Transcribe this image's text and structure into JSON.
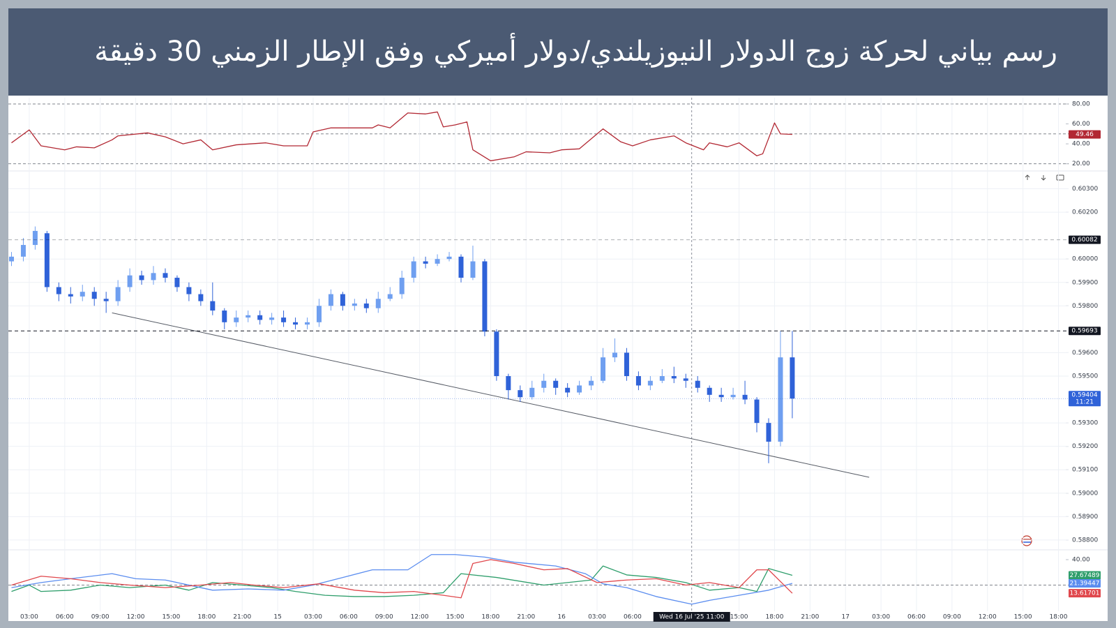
{
  "header": {
    "title": "رسم بياني لحركة زوج الدولار النيوزيلندي/دولار أميركي وفق الإطار الزمني 30 دقيقة"
  },
  "chart_data": [
    {
      "type": "line",
      "xlim": [
        -1,
        178
      ],
      "ylim": [
        12.8,
        84.2
      ],
      "yticks": [
        {
          "value": 80,
          "label": "80.00"
        },
        {
          "value": 60,
          "label": "60.00"
        },
        {
          "value": 40,
          "label": "40.00"
        },
        {
          "value": 20,
          "label": "20.00"
        }
      ],
      "levels": [
        80,
        50,
        20
      ],
      "grid": false,
      "last_value_labels": true,
      "series": [
        {
          "color": "#b22833",
          "x": [
            0,
            3,
            5,
            9,
            11,
            14,
            17,
            18,
            23,
            26,
            29,
            32,
            34,
            38,
            43,
            46,
            50,
            51,
            54,
            61,
            62,
            64,
            67,
            70,
            72,
            73,
            75,
            77,
            78,
            81,
            85,
            87,
            91,
            93,
            96,
            100,
            103,
            105,
            108,
            112,
            114,
            117,
            118,
            121,
            123,
            126,
            127,
            129,
            130,
            132
          ],
          "values": [
            41,
            54,
            38,
            34,
            37,
            36,
            44,
            48,
            51,
            47,
            40,
            44,
            34,
            39,
            41,
            38,
            38,
            52,
            56,
            56,
            59,
            56,
            71,
            70,
            72,
            57,
            59,
            62,
            34,
            23,
            27,
            32,
            31,
            34,
            35,
            55,
            42,
            38,
            44,
            48,
            41,
            34,
            41,
            37,
            41,
            28,
            30,
            61,
            50,
            49.46
          ]
        }
      ]
    },
    {
      "type": "candlestick",
      "xlim": [
        -1,
        178
      ],
      "ylim": [
        0.5877,
        0.60376
      ],
      "grid": true,
      "yticks": [
        {
          "value": 0.603,
          "label": "0.60300"
        },
        {
          "value": 0.602,
          "label": "0.60200"
        },
        {
          "value": 0.6,
          "label": "0.60000"
        },
        {
          "value": 0.599,
          "label": "0.59900"
        },
        {
          "value": 0.598,
          "label": "0.59800"
        },
        {
          "value": 0.596,
          "label": "0.59600"
        },
        {
          "value": 0.595,
          "label": "0.59500"
        },
        {
          "value": 0.593,
          "label": "0.59300"
        },
        {
          "value": 0.592,
          "label": "0.59200"
        },
        {
          "value": 0.591,
          "label": "0.59100"
        },
        {
          "value": 0.59,
          "label": "0.59000"
        },
        {
          "value": 0.589,
          "label": "0.58900"
        },
        {
          "value": 0.588,
          "label": "0.58800"
        }
      ],
      "up_color": "#6f9ff0",
      "down_color": "#2f62d8",
      "x": [
        0,
        2,
        4,
        6,
        8,
        10,
        12,
        14,
        16,
        18,
        20,
        22,
        24,
        26,
        28,
        30,
        32,
        34,
        36,
        38,
        40,
        42,
        44,
        46,
        48,
        50,
        52,
        54,
        56,
        58,
        60,
        62,
        64,
        66,
        68,
        70,
        72,
        74,
        76,
        78,
        80,
        82,
        84,
        86,
        88,
        90,
        92,
        94,
        96,
        98,
        100,
        102,
        104,
        106,
        108,
        110,
        112,
        114,
        116,
        118,
        120,
        122,
        124,
        126,
        128,
        130,
        132
      ],
      "open": [
        0.5999,
        0.6001,
        0.6006,
        0.6011,
        0.5988,
        0.5985,
        0.5984,
        0.5986,
        0.5983,
        0.5982,
        0.5988,
        0.5993,
        0.5991,
        0.5994,
        0.5992,
        0.5988,
        0.5985,
        0.5982,
        0.5978,
        0.5973,
        0.5975,
        0.5976,
        0.5974,
        0.5975,
        0.5973,
        0.5972,
        0.5973,
        0.598,
        0.5985,
        0.598,
        0.5981,
        0.5979,
        0.5983,
        0.5985,
        0.5992,
        0.5999,
        0.5998,
        0.6,
        0.6001,
        0.5992,
        0.5999,
        0.5969,
        0.595,
        0.5944,
        0.5941,
        0.5945,
        0.5948,
        0.5945,
        0.5943,
        0.5946,
        0.5948,
        0.5958,
        0.596,
        0.595,
        0.5946,
        0.5948,
        0.595,
        0.5949,
        0.5948,
        0.5945,
        0.5942,
        0.5941,
        0.5942,
        0.594,
        0.593,
        0.5922,
        0.5958
      ],
      "high": [
        0.6003,
        0.6009,
        0.60139,
        0.6012,
        0.599,
        0.5988,
        0.5989,
        0.5988,
        0.5986,
        0.5991,
        0.5996,
        0.5995,
        0.5997,
        0.5996,
        0.5993,
        0.599,
        0.5987,
        0.599,
        0.5979,
        0.5978,
        0.5978,
        0.5978,
        0.5977,
        0.5978,
        0.5975,
        0.5975,
        0.5983,
        0.5987,
        0.5986,
        0.5983,
        0.5983,
        0.5986,
        0.5988,
        0.5995,
        0.6001,
        0.6001,
        0.6002,
        0.6003,
        0.6002,
        0.60057,
        0.6,
        0.597,
        0.5951,
        0.5946,
        0.5948,
        0.5951,
        0.5949,
        0.5947,
        0.5948,
        0.595,
        0.5962,
        0.59661,
        0.5962,
        0.5952,
        0.595,
        0.5953,
        0.5954,
        0.5951,
        0.595,
        0.5946,
        0.5945,
        0.5945,
        0.5948,
        0.5941,
        0.5932,
        0.59693,
        0.59693
      ],
      "low": [
        0.5997,
        0.5999,
        0.6004,
        0.5986,
        0.5982,
        0.5981,
        0.5982,
        0.598,
        0.5977,
        0.598,
        0.5986,
        0.5989,
        0.5989,
        0.599,
        0.5986,
        0.5982,
        0.598,
        0.5976,
        0.597,
        0.5971,
        0.5973,
        0.5972,
        0.5972,
        0.5971,
        0.597,
        0.597,
        0.5971,
        0.5978,
        0.5978,
        0.5978,
        0.5977,
        0.5977,
        0.5982,
        0.5983,
        0.599,
        0.5996,
        0.5997,
        0.5999,
        0.599,
        0.5991,
        0.5967,
        0.5948,
        0.594,
        0.5939,
        0.594,
        0.5943,
        0.5942,
        0.5941,
        0.5942,
        0.5944,
        0.5947,
        0.5956,
        0.5948,
        0.5944,
        0.5944,
        0.5947,
        0.5947,
        0.5945,
        0.5943,
        0.5939,
        0.5939,
        0.594,
        0.5938,
        0.5926,
        0.59128,
        0.592,
        0.5932
      ],
      "close": [
        0.6001,
        0.6006,
        0.6012,
        0.5988,
        0.5985,
        0.5984,
        0.5986,
        0.5983,
        0.5982,
        0.5988,
        0.5993,
        0.5991,
        0.5994,
        0.5992,
        0.5988,
        0.5985,
        0.5982,
        0.5978,
        0.5973,
        0.5975,
        0.5976,
        0.5974,
        0.5975,
        0.5973,
        0.5972,
        0.5973,
        0.598,
        0.5985,
        0.598,
        0.5981,
        0.5979,
        0.5983,
        0.5985,
        0.5992,
        0.5999,
        0.5998,
        0.6,
        0.6001,
        0.5992,
        0.5999,
        0.5969,
        0.595,
        0.5944,
        0.5941,
        0.5945,
        0.5948,
        0.5945,
        0.5943,
        0.5946,
        0.5948,
        0.5958,
        0.596,
        0.595,
        0.5946,
        0.5948,
        0.595,
        0.5949,
        0.5948,
        0.5945,
        0.5942,
        0.5941,
        0.5942,
        0.594,
        0.593,
        0.5922,
        0.5958,
        0.59404
      ],
      "last_color": "#2f62d8",
      "countdown": "11:21",
      "price_lines": [
        {
          "value": 0.60082,
          "color": "#131722"
        },
        {
          "value": 0.59693,
          "color": "#131722"
        }
      ],
      "trendline": {
        "color": "#555a64",
        "x": [
          17,
          145
        ],
        "values": [
          0.5977,
          0.59068
        ]
      }
    },
    {
      "type": "line",
      "xlim": [
        -1,
        178
      ],
      "ylim": [
        0,
        45.5
      ],
      "yticks": [
        {
          "value": 40,
          "label": "40.00"
        }
      ],
      "levels": [
        20
      ],
      "grid": false,
      "last_value_labels": true,
      "xticks": [
        {
          "value": 3,
          "label": "03:00"
        },
        {
          "value": 9,
          "label": "06:00"
        },
        {
          "value": 15,
          "label": "09:00"
        },
        {
          "value": 21,
          "label": "12:00"
        },
        {
          "value": 27,
          "label": "15:00"
        },
        {
          "value": 33,
          "label": "18:00"
        },
        {
          "value": 39,
          "label": "21:00"
        },
        {
          "value": 45,
          "label": "15"
        },
        {
          "value": 51,
          "label": "03:00"
        },
        {
          "value": 57,
          "label": "06:00"
        },
        {
          "value": 63,
          "label": "09:00"
        },
        {
          "value": 69,
          "label": "12:00"
        },
        {
          "value": 75,
          "label": "15:00"
        },
        {
          "value": 81,
          "label": "18:00"
        },
        {
          "value": 87,
          "label": "21:00"
        },
        {
          "value": 93,
          "label": "16"
        },
        {
          "value": 99,
          "label": "03:00"
        },
        {
          "value": 105,
          "label": "06:00"
        },
        {
          "value": 123,
          "label": "15:00"
        },
        {
          "value": 129,
          "label": "18:00"
        },
        {
          "value": 135,
          "label": "21:00"
        },
        {
          "value": 141,
          "label": "17"
        },
        {
          "value": 147,
          "label": "03:00"
        },
        {
          "value": 153,
          "label": "06:00"
        },
        {
          "value": 159,
          "label": "09:00"
        },
        {
          "value": 165,
          "label": "12:00"
        },
        {
          "value": 171,
          "label": "15:00"
        },
        {
          "value": 177,
          "label": "18:00"
        }
      ],
      "crosshair": {
        "value": 115,
        "label": "Wed 16 Jul '25  11:00"
      },
      "series": [
        {
          "color": "#2e9e6b",
          "x": [
            0,
            3,
            5,
            10,
            15,
            20,
            26,
            30,
            34,
            39,
            44,
            48,
            53,
            58,
            63,
            68,
            73,
            76,
            82,
            90,
            94,
            98,
            100,
            104,
            109,
            114,
            118,
            123,
            126,
            128,
            132
          ],
          "values": [
            15,
            20,
            15,
            16,
            20,
            18,
            20,
            16,
            22,
            20,
            18,
            15,
            12,
            11,
            11,
            12,
            14,
            29,
            26,
            20,
            22,
            24,
            35,
            28,
            26,
            22,
            16,
            18,
            15,
            33,
            27.67489
          ]
        },
        {
          "color": "#5b8def",
          "x": [
            0,
            5,
            10,
            17,
            21,
            26,
            29,
            34,
            40,
            46,
            51,
            56,
            61,
            67,
            71,
            75,
            80,
            85,
            92,
            97,
            100,
            104,
            109,
            115,
            118,
            123,
            128,
            132
          ],
          "values": [
            18,
            22,
            25,
            29,
            25,
            24,
            21,
            16,
            17,
            16,
            20,
            26,
            32,
            32,
            44,
            44,
            42,
            38,
            35,
            29,
            21,
            18,
            11,
            5,
            8,
            12,
            16,
            21.39447
          ]
        },
        {
          "color": "#e0474c",
          "x": [
            0,
            5,
            10,
            15,
            20,
            26,
            32,
            37,
            41,
            46,
            52,
            58,
            63,
            68,
            73,
            76,
            78,
            81,
            85,
            90,
            94,
            99,
            104,
            109,
            114,
            118,
            123,
            126,
            128,
            132
          ],
          "values": [
            20,
            27,
            25,
            22,
            20,
            18,
            20,
            22,
            20,
            18,
            21,
            16,
            14,
            15,
            12,
            10,
            37,
            40,
            37,
            32,
            33,
            22,
            24,
            25,
            20,
            22,
            18,
            32,
            32,
            13.61701
          ]
        }
      ]
    }
  ]
}
